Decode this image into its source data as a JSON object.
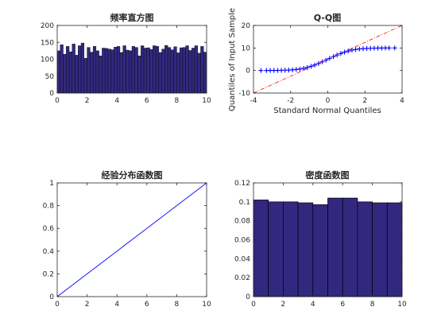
{
  "colors": {
    "bar_fill": "#33287f",
    "bar_edge": "#000000",
    "qq_points": "#0000ff",
    "qq_line": "#ff0000",
    "ecdf_line": "#0000ff",
    "axis": "#262626"
  },
  "chart_data": [
    {
      "id": "hist",
      "type": "bar",
      "title": "频率直方图",
      "xlabel": "",
      "ylabel": "",
      "xlim": [
        0,
        10
      ],
      "ylim": [
        0,
        200
      ],
      "xticks": [
        0,
        2,
        4,
        6,
        8,
        10
      ],
      "yticks": [
        0,
        50,
        100,
        150,
        200
      ],
      "bin_start": 0,
      "bin_width": 0.2,
      "values": [
        125,
        143,
        115,
        138,
        122,
        145,
        112,
        140,
        148,
        103,
        135,
        121,
        138,
        125,
        110,
        133,
        132,
        130,
        128,
        136,
        138,
        120,
        140,
        127,
        125,
        138,
        135,
        110,
        140,
        133,
        134,
        129,
        140,
        138,
        120,
        130,
        141,
        135,
        128,
        137,
        119,
        134,
        135,
        140,
        126,
        133,
        140,
        118,
        138,
        121
      ]
    },
    {
      "id": "qq",
      "type": "scatter",
      "title": "Q-Q图",
      "xlabel": "Standard Normal Quantiles",
      "ylabel": "Quantiles of Input Sample",
      "xlim": [
        -4,
        4
      ],
      "ylim": [
        -10,
        20
      ],
      "xticks": [
        -4,
        -2,
        0,
        2,
        4
      ],
      "yticks": [
        -10,
        0,
        10,
        20
      ],
      "marker": "+",
      "points": [
        [
          -3.6,
          0
        ],
        [
          -3.3,
          0
        ],
        [
          -3.1,
          0.05
        ],
        [
          -2.9,
          0.05
        ],
        [
          -2.7,
          0.05
        ],
        [
          -2.5,
          0.1
        ],
        [
          -2.3,
          0.15
        ],
        [
          -2.1,
          0.2
        ],
        [
          -1.9,
          0.3
        ],
        [
          -1.7,
          0.45
        ],
        [
          -1.5,
          0.65
        ],
        [
          -1.3,
          0.95
        ],
        [
          -1.1,
          1.35
        ],
        [
          -0.9,
          1.85
        ],
        [
          -0.7,
          2.45
        ],
        [
          -0.5,
          3.1
        ],
        [
          -0.3,
          3.85
        ],
        [
          -0.1,
          4.6
        ],
        [
          0.1,
          5.4
        ],
        [
          0.3,
          6.15
        ],
        [
          0.5,
          6.9
        ],
        [
          0.7,
          7.55
        ],
        [
          0.9,
          8.15
        ],
        [
          1.1,
          8.65
        ],
        [
          1.3,
          9.05
        ],
        [
          1.5,
          9.35
        ],
        [
          1.7,
          9.55
        ],
        [
          1.9,
          9.7
        ],
        [
          2.1,
          9.8
        ],
        [
          2.3,
          9.85
        ],
        [
          2.5,
          9.9
        ],
        [
          2.7,
          9.95
        ],
        [
          2.9,
          9.95
        ],
        [
          3.1,
          10
        ],
        [
          3.3,
          10
        ],
        [
          3.6,
          10
        ]
      ],
      "ref_line": {
        "x": [
          -4,
          4
        ],
        "y": [
          -10,
          20
        ],
        "style": "dash-dot"
      }
    },
    {
      "id": "ecdf",
      "type": "line",
      "title": "经验分布函数图",
      "xlabel": "",
      "ylabel": "",
      "xlim": [
        0,
        10
      ],
      "ylim": [
        0,
        1
      ],
      "xticks": [
        0,
        2,
        4,
        6,
        8,
        10
      ],
      "yticks": [
        0,
        0.2,
        0.4,
        0.6,
        0.8,
        1
      ],
      "series": [
        {
          "x": [
            0,
            10
          ],
          "y": [
            0,
            1
          ]
        }
      ]
    },
    {
      "id": "density",
      "type": "bar",
      "title": "密度函数图",
      "xlabel": "",
      "ylabel": "",
      "xlim": [
        0,
        10
      ],
      "ylim": [
        0,
        0.12
      ],
      "xticks": [
        0,
        2,
        4,
        6,
        8,
        10
      ],
      "yticks": [
        0,
        0.02,
        0.04,
        0.06,
        0.08,
        0.1,
        0.12
      ],
      "bin_start": 0,
      "bin_width": 1,
      "values": [
        0.102,
        0.1,
        0.1,
        0.099,
        0.097,
        0.104,
        0.104,
        0.1,
        0.099,
        0.099
      ]
    }
  ]
}
